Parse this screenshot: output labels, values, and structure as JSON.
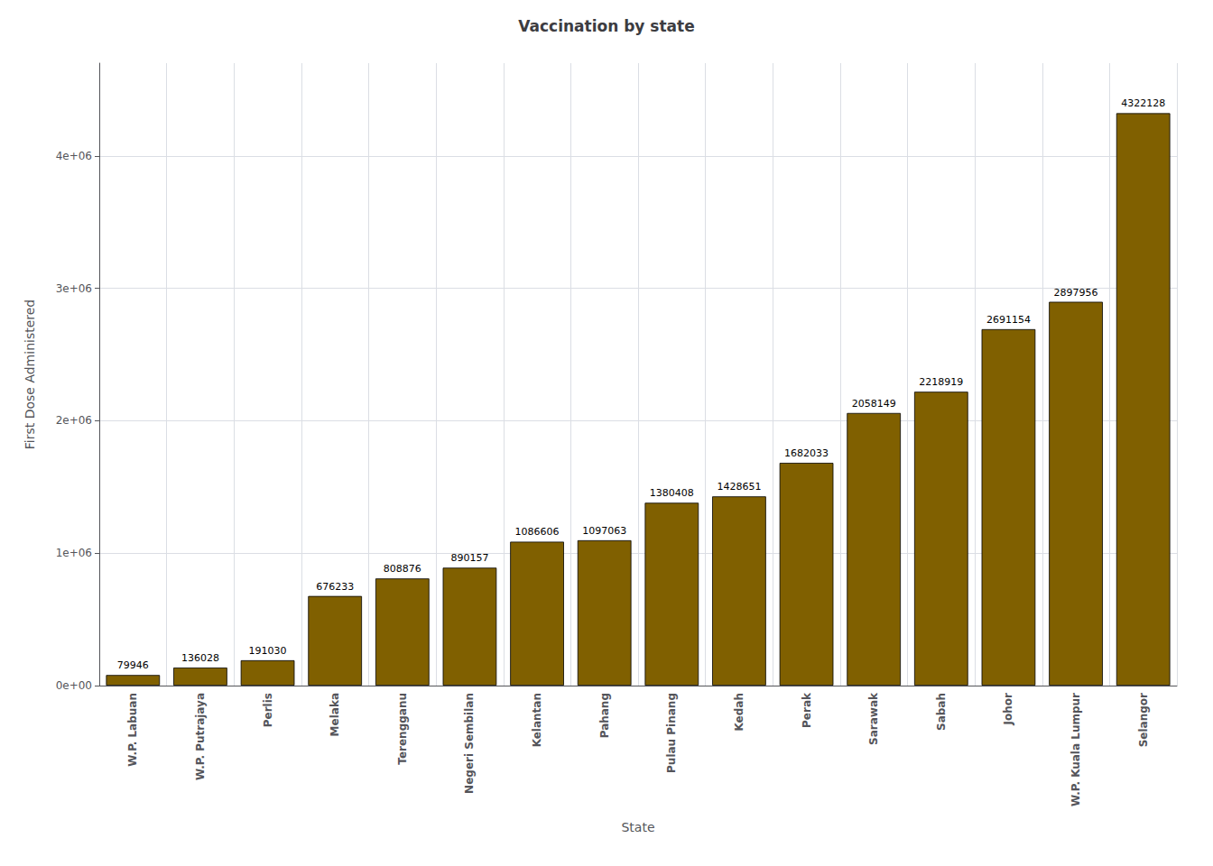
{
  "chart_data": {
    "type": "bar",
    "title": "Vaccination by state",
    "xlabel": "State",
    "ylabel": "First Dose Administered",
    "categories": [
      "W.P. Labuan",
      "W.P. Putrajaya",
      "Perlis",
      "Melaka",
      "Terengganu",
      "Negeri Sembilan",
      "Kelantan",
      "Pahang",
      "Pulau Pinang",
      "Kedah",
      "Perak",
      "Sarawak",
      "Sabah",
      "Johor",
      "W.P. Kuala Lumpur",
      "Selangor"
    ],
    "values": [
      79946,
      136028,
      191030,
      676233,
      808876,
      890157,
      1086606,
      1097063,
      1380408,
      1428651,
      1682033,
      2058149,
      2218919,
      2691154,
      2897956,
      4322128
    ],
    "color": "#806000",
    "ylim": [
      0,
      4700000
    ],
    "yticks": [
      {
        "value": 0,
        "label": "0e+00"
      },
      {
        "value": 1000000,
        "label": "1e+06"
      },
      {
        "value": 2000000,
        "label": "2e+06"
      },
      {
        "value": 3000000,
        "label": "3e+06"
      },
      {
        "value": 4000000,
        "label": "4e+06"
      }
    ],
    "grid": true,
    "data_labels": true
  }
}
